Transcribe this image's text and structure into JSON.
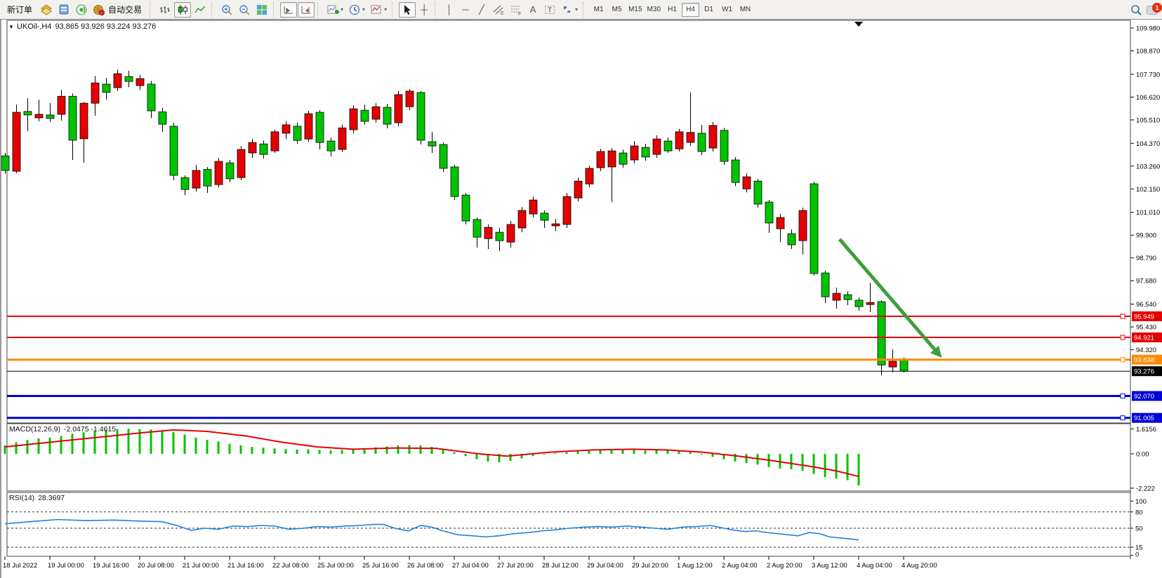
{
  "toolbar": {
    "new_order_label": "新订单",
    "auto_trading_label": "自动交易",
    "icon_names": [
      "new-order",
      "charts-gold",
      "profile",
      "sound",
      "auto-trading-globe",
      "bar-chart",
      "candlestick-chart",
      "line-chart",
      "zoom-in",
      "zoom-out",
      "tile-windows",
      "auto-scroll",
      "chart-shift",
      "indicators-add",
      "periods-clock",
      "templates",
      "cursor",
      "crosshair",
      "vertical-line",
      "horizontal-line",
      "trend-line",
      "equidistant-channel",
      "fibonacci",
      "text",
      "text-label",
      "arrows",
      "search",
      "notifications"
    ],
    "glyphs": {
      "dropdown": "▾",
      "vline": "│",
      "hline": "─",
      "trend": "╱",
      "text_a": "A",
      "text_t": "T",
      "crosshair": "┼"
    },
    "timeframes": [
      "M1",
      "M5",
      "M15",
      "M30",
      "H1",
      "H4",
      "D1",
      "W1",
      "MN"
    ],
    "active_timeframe": "H4",
    "notification_count": "1"
  },
  "chart_data": {
    "type": "candlestick",
    "symbol_timeframe": "UKOil-,H4",
    "quote_text": "93.865 93.926 93.224 93.276",
    "quote": {
      "open": "93.865",
      "high": "93.926",
      "low": "93.224",
      "close": "93.276"
    },
    "colors": {
      "up_candle": "#e60000",
      "down_candle": "#00c400",
      "wick": "#000000",
      "macd_hist": "#00c400",
      "macd_signal": "#e60000",
      "rsi_line": "#2080e0",
      "arrow": "#3f9e3c",
      "line_red": "#e60000",
      "line_orange": "#ff8a00",
      "line_blue": "#0000d8",
      "line_black": "#000000"
    },
    "price_axis_ticks": [
      "109.980",
      "108.870",
      "107.730",
      "106.620",
      "105.510",
      "104.370",
      "103.260",
      "102.150",
      "101.010",
      "99.900",
      "98.790",
      "97.680",
      "96.540",
      "95.430",
      "94.320"
    ],
    "time_axis_labels": [
      "18 Jul 2022",
      "19 Jul 00:00",
      "19 Jul 16:00",
      "20 Jul 08:00",
      "21 Jul 00:00",
      "21 Jul 16:00",
      "22 Jul 08:00",
      "25 Jul 00:00",
      "25 Jul 16:00",
      "26 Jul 08:00",
      "27 Jul 04:00",
      "27 Jul 20:00",
      "28 Jul 12:00",
      "29 Jul 04:00",
      "29 Jul 20:00",
      "1 Aug 12:00",
      "2 Aug 04:00",
      "2 Aug 20:00",
      "3 Aug 12:00",
      "4 Aug 04:00",
      "4 Aug 20:00"
    ],
    "hlines": [
      {
        "price": 95.949,
        "label": "95.949",
        "color": "#e60000",
        "width": 2,
        "marker": true
      },
      {
        "price": 94.921,
        "label": "94.921",
        "color": "#e60000",
        "width": 2,
        "marker": true
      },
      {
        "price": 93.838,
        "label": "93.838",
        "color": "#ff8a00",
        "width": 3,
        "marker": true
      },
      {
        "price": 93.276,
        "label": "93.276",
        "color": "#000000",
        "width": 1,
        "marker": false
      },
      {
        "price": 92.07,
        "label": "92.070",
        "color": "#0000d8",
        "width": 3,
        "marker": true
      },
      {
        "price": 91.005,
        "label": "91.005",
        "color": "#0000d8",
        "width": 3,
        "marker": true
      }
    ],
    "arrow": {
      "from_bar": 74.3,
      "from_price": 99.7,
      "to_bar": 83.4,
      "to_price": 93.93
    },
    "shift_marker_bar": 76,
    "candles": [
      [
        "g",
        103.76,
        103.05,
        103.9,
        102.88
      ],
      [
        "r",
        105.88,
        103.01,
        106.26,
        102.91
      ],
      [
        "g",
        105.92,
        105.75,
        106.56,
        104.96
      ],
      [
        "r",
        105.78,
        105.61,
        106.49,
        105.44
      ],
      [
        "g",
        105.75,
        105.58,
        106.32,
        105.4
      ],
      [
        "r",
        106.66,
        105.78,
        106.97,
        105.47
      ],
      [
        "g",
        106.66,
        104.52,
        106.8,
        103.56
      ],
      [
        "r",
        106.32,
        104.59,
        106.39,
        103.42
      ],
      [
        "r",
        107.31,
        106.32,
        107.65,
        105.71
      ],
      [
        "g",
        107.25,
        106.85,
        107.55,
        106.5
      ],
      [
        "r",
        107.76,
        107.08,
        107.96,
        106.91
      ],
      [
        "g",
        107.62,
        107.38,
        107.9,
        107.1
      ],
      [
        "r",
        107.52,
        107.18,
        107.7,
        106.97
      ],
      [
        "g",
        107.25,
        105.95,
        107.4,
        105.6
      ],
      [
        "g",
        105.9,
        105.3,
        106.1,
        104.93
      ],
      [
        "g",
        105.2,
        102.81,
        105.37,
        102.57
      ],
      [
        "g",
        102.7,
        102.12,
        102.81,
        101.85
      ],
      [
        "r",
        103.05,
        102.19,
        103.32,
        102.02
      ],
      [
        "g",
        103.1,
        102.29,
        103.22,
        101.95
      ],
      [
        "r",
        103.49,
        102.36,
        103.66,
        102.22
      ],
      [
        "g",
        103.42,
        102.64,
        103.56,
        102.47
      ],
      [
        "r",
        104.07,
        102.7,
        104.24,
        102.57
      ],
      [
        "r",
        104.41,
        103.9,
        104.58,
        103.66
      ],
      [
        "g",
        104.34,
        103.83,
        104.51,
        103.63
      ],
      [
        "r",
        104.93,
        104.0,
        105.03,
        103.9
      ],
      [
        "r",
        105.27,
        104.86,
        105.44,
        104.58
      ],
      [
        "g",
        105.2,
        104.51,
        105.37,
        104.34
      ],
      [
        "r",
        105.81,
        104.58,
        105.95,
        104.44
      ],
      [
        "g",
        105.88,
        104.41,
        105.98,
        104.07
      ],
      [
        "g",
        104.48,
        104.0,
        104.65,
        103.73
      ],
      [
        "r",
        105.12,
        104.07,
        105.27,
        103.95
      ],
      [
        "r",
        106.05,
        105.03,
        106.22,
        104.86
      ],
      [
        "g",
        105.98,
        105.44,
        106.26,
        105.27
      ],
      [
        "r",
        106.15,
        105.54,
        106.32,
        105.37
      ],
      [
        "g",
        106.12,
        105.3,
        106.29,
        105.1
      ],
      [
        "r",
        106.74,
        105.37,
        106.91,
        105.2
      ],
      [
        "r",
        106.91,
        106.15,
        107.0,
        105.98
      ],
      [
        "g",
        106.84,
        104.52,
        106.91,
        104.31
      ],
      [
        "g",
        104.45,
        104.24,
        104.93,
        103.9
      ],
      [
        "g",
        104.31,
        103.15,
        104.41,
        102.98
      ],
      [
        "g",
        103.22,
        101.78,
        103.32,
        101.61
      ],
      [
        "g",
        101.85,
        100.59,
        101.95,
        100.42
      ],
      [
        "g",
        100.66,
        99.8,
        100.76,
        99.29
      ],
      [
        "r",
        100.28,
        99.73,
        100.42,
        99.22
      ],
      [
        "g",
        100.04,
        99.63,
        100.25,
        99.12
      ],
      [
        "r",
        100.42,
        99.56,
        100.59,
        99.29
      ],
      [
        "r",
        101.1,
        100.25,
        101.27,
        100.04
      ],
      [
        "r",
        101.61,
        100.93,
        101.78,
        100.76
      ],
      [
        "g",
        100.97,
        100.62,
        101.1,
        100.25
      ],
      [
        "r",
        100.45,
        100.35,
        100.69,
        100.11
      ],
      [
        "r",
        101.78,
        100.42,
        101.95,
        100.25
      ],
      [
        "r",
        102.53,
        101.71,
        102.7,
        101.54
      ],
      [
        "r",
        103.15,
        102.39,
        103.29,
        102.22
      ],
      [
        "r",
        103.97,
        103.18,
        104.1,
        103.01
      ],
      [
        "r",
        104.0,
        103.22,
        104.14,
        101.51
      ],
      [
        "g",
        103.9,
        103.35,
        104.07,
        103.18
      ],
      [
        "r",
        104.24,
        103.56,
        104.48,
        103.39
      ],
      [
        "g",
        104.17,
        103.7,
        104.34,
        103.52
      ],
      [
        "r",
        104.58,
        103.83,
        104.76,
        103.66
      ],
      [
        "g",
        104.48,
        104.0,
        104.65,
        103.9
      ],
      [
        "r",
        104.93,
        104.1,
        105.07,
        103.97
      ],
      [
        "r",
        104.9,
        104.41,
        106.84,
        104.24
      ],
      [
        "g",
        104.86,
        103.97,
        105.27,
        103.8
      ],
      [
        "r",
        105.24,
        104.14,
        105.41,
        103.97
      ],
      [
        "g",
        105.0,
        103.49,
        105.12,
        103.32
      ],
      [
        "g",
        103.56,
        102.46,
        103.7,
        102.29
      ],
      [
        "r",
        102.74,
        102.15,
        102.91,
        101.98
      ],
      [
        "g",
        102.53,
        101.41,
        102.63,
        101.24
      ],
      [
        "g",
        101.51,
        100.49,
        101.61,
        100.01
      ],
      [
        "r",
        100.76,
        100.21,
        100.93,
        99.56
      ],
      [
        "g",
        99.97,
        99.43,
        100.18,
        99.22
      ],
      [
        "r",
        101.1,
        99.63,
        101.24,
        98.95
      ],
      [
        "g",
        102.4,
        98.03,
        102.5,
        97.93
      ],
      [
        "g",
        98.06,
        96.9,
        98.17,
        96.59
      ],
      [
        "r",
        97.07,
        96.73,
        97.34,
        96.32
      ],
      [
        "g",
        97.0,
        96.76,
        97.17,
        96.49
      ],
      [
        "g",
        96.73,
        96.42,
        96.87,
        96.21
      ],
      [
        "r",
        96.62,
        96.52,
        97.58,
        96.15
      ],
      [
        "g",
        96.66,
        93.58,
        96.73,
        93.07
      ],
      [
        "r",
        93.76,
        93.48,
        94.34,
        93.22
      ],
      [
        "g",
        93.87,
        93.28,
        93.93,
        93.22
      ]
    ],
    "macd": {
      "title": "MACD(12,26,9)",
      "values_text": "-2.0475 -1.4615",
      "scale_labels": [
        "1.6156",
        "0.00",
        "-2.222"
      ],
      "scale_values": [
        1.6156,
        0,
        -2.222
      ],
      "histogram": [
        0.55,
        0.75,
        0.9,
        1.0,
        1.05,
        1.15,
        1.3,
        1.4,
        1.5,
        1.55,
        1.6,
        1.62,
        1.6,
        1.58,
        1.5,
        1.4,
        1.25,
        1.05,
        0.9,
        0.8,
        0.65,
        0.55,
        0.45,
        0.4,
        0.35,
        0.3,
        0.28,
        0.28,
        0.25,
        0.22,
        0.25,
        0.3,
        0.35,
        0.42,
        0.48,
        0.55,
        0.58,
        0.55,
        0.45,
        0.3,
        0.1,
        -0.15,
        -0.35,
        -0.5,
        -0.55,
        -0.45,
        -0.3,
        -0.15,
        -0.05,
        0.05,
        0.1,
        0.18,
        0.22,
        0.28,
        0.3,
        0.28,
        0.25,
        0.22,
        0.25,
        0.28,
        0.2,
        0.1,
        -0.05,
        -0.2,
        -0.35,
        -0.5,
        -0.6,
        -0.7,
        -0.85,
        -0.95,
        -1.0,
        -1.1,
        -1.3,
        -1.5,
        -1.6,
        -1.7,
        -2.05
      ],
      "signal": [
        [
          0,
          0.45
        ],
        [
          6,
          0.9
        ],
        [
          12,
          1.35
        ],
        [
          15,
          1.55
        ],
        [
          18,
          1.45
        ],
        [
          21.5,
          1.15
        ],
        [
          24.7,
          0.75
        ],
        [
          27.8,
          0.45
        ],
        [
          31,
          0.3
        ],
        [
          34.7,
          0.38
        ],
        [
          38.4,
          0.35
        ],
        [
          42.2,
          0.0
        ],
        [
          44.7,
          -0.15
        ],
        [
          48.4,
          0.1
        ],
        [
          52.2,
          0.25
        ],
        [
          55.9,
          0.3
        ],
        [
          59,
          0.25
        ],
        [
          62.2,
          0.1
        ],
        [
          65.3,
          -0.15
        ],
        [
          68.4,
          -0.45
        ],
        [
          71.6,
          -0.8
        ],
        [
          74,
          -1.1
        ],
        [
          76,
          -1.46
        ]
      ]
    },
    "rsi": {
      "title": "RSI(14)",
      "value_text": "28.3697",
      "scale_labels": [
        "100",
        "80",
        "50",
        "15",
        "0"
      ],
      "scale_values": [
        100,
        80,
        50,
        15,
        0
      ],
      "dashed_levels": [
        80,
        50,
        15
      ],
      "line": [
        [
          0,
          58
        ],
        [
          2.2,
          62
        ],
        [
          4.7,
          66
        ],
        [
          7.2,
          64
        ],
        [
          9.7,
          65
        ],
        [
          12.2,
          63
        ],
        [
          14,
          62
        ],
        [
          15.3,
          55
        ],
        [
          16.6,
          46
        ],
        [
          17.8,
          50
        ],
        [
          19,
          48
        ],
        [
          20.3,
          54
        ],
        [
          21.6,
          53
        ],
        [
          22.8,
          55
        ],
        [
          24,
          54
        ],
        [
          25.3,
          48
        ],
        [
          26.6,
          50
        ],
        [
          27.8,
          53
        ],
        [
          29,
          52
        ],
        [
          30.3,
          54
        ],
        [
          31.6,
          55
        ],
        [
          32.8,
          57
        ],
        [
          33.7,
          57
        ],
        [
          34.7,
          50
        ],
        [
          35.9,
          45
        ],
        [
          37,
          55
        ],
        [
          38,
          52
        ],
        [
          39,
          45
        ],
        [
          40.3,
          38
        ],
        [
          41.6,
          36
        ],
        [
          42.8,
          34
        ],
        [
          44,
          36
        ],
        [
          45.3,
          40
        ],
        [
          46.6,
          42
        ],
        [
          47.8,
          45
        ],
        [
          49,
          47
        ],
        [
          50.3,
          50
        ],
        [
          51.6,
          52
        ],
        [
          52.8,
          53
        ],
        [
          54,
          52
        ],
        [
          55.3,
          54
        ],
        [
          56.6,
          52
        ],
        [
          57.8,
          50
        ],
        [
          59,
          48
        ],
        [
          60.3,
          52
        ],
        [
          61.6,
          53
        ],
        [
          62.8,
          55
        ],
        [
          64,
          50
        ],
        [
          65,
          46
        ],
        [
          65.9,
          44
        ],
        [
          66.9,
          45
        ],
        [
          67.8,
          42
        ],
        [
          68.8,
          40
        ],
        [
          69.7,
          38
        ],
        [
          70.6,
          36
        ],
        [
          71.6,
          42
        ],
        [
          72.5,
          40
        ],
        [
          73.4,
          34
        ],
        [
          74.4,
          32
        ],
        [
          75.3,
          30
        ],
        [
          76,
          28.4
        ]
      ]
    }
  }
}
